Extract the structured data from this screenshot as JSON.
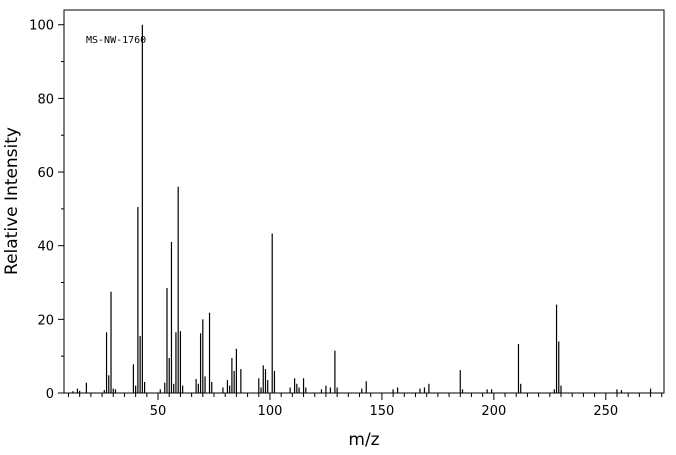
{
  "chart_data": {
    "type": "bar",
    "title": "",
    "annotation": "MS-NW-1760",
    "xlabel": "m/z",
    "ylabel": "Relative Intensity",
    "xlim": [
      8,
      276
    ],
    "ylim": [
      0,
      104
    ],
    "x_ticks": [
      50,
      100,
      150,
      200,
      250
    ],
    "y_ticks": [
      0,
      20,
      40,
      60,
      80,
      100
    ],
    "grid": false,
    "peaks": [
      {
        "mz": 12,
        "intensity": 0.5
      },
      {
        "mz": 14,
        "intensity": 1.2
      },
      {
        "mz": 15,
        "intensity": 0.6
      },
      {
        "mz": 18,
        "intensity": 2.8
      },
      {
        "mz": 26,
        "intensity": 0.8
      },
      {
        "mz": 27,
        "intensity": 16.5
      },
      {
        "mz": 28,
        "intensity": 4.8
      },
      {
        "mz": 29,
        "intensity": 27.5
      },
      {
        "mz": 30,
        "intensity": 1.2
      },
      {
        "mz": 31,
        "intensity": 1.0
      },
      {
        "mz": 39,
        "intensity": 7.8
      },
      {
        "mz": 40,
        "intensity": 2.0
      },
      {
        "mz": 41,
        "intensity": 50.5
      },
      {
        "mz": 42,
        "intensity": 15.5
      },
      {
        "mz": 43,
        "intensity": 100
      },
      {
        "mz": 44,
        "intensity": 3.0
      },
      {
        "mz": 51,
        "intensity": 1.0
      },
      {
        "mz": 53,
        "intensity": 2.8
      },
      {
        "mz": 54,
        "intensity": 28.5
      },
      {
        "mz": 55,
        "intensity": 9.5
      },
      {
        "mz": 56,
        "intensity": 41.0
      },
      {
        "mz": 57,
        "intensity": 2.5
      },
      {
        "mz": 58,
        "intensity": 16.5
      },
      {
        "mz": 59,
        "intensity": 56.0
      },
      {
        "mz": 60,
        "intensity": 16.8
      },
      {
        "mz": 61,
        "intensity": 2.0
      },
      {
        "mz": 67,
        "intensity": 3.8
      },
      {
        "mz": 68,
        "intensity": 2.5
      },
      {
        "mz": 69,
        "intensity": 16.2
      },
      {
        "mz": 70,
        "intensity": 20.0
      },
      {
        "mz": 71,
        "intensity": 4.5
      },
      {
        "mz": 73,
        "intensity": 21.8
      },
      {
        "mz": 74,
        "intensity": 3.0
      },
      {
        "mz": 79,
        "intensity": 1.5
      },
      {
        "mz": 81,
        "intensity": 3.5
      },
      {
        "mz": 82,
        "intensity": 2.0
      },
      {
        "mz": 83,
        "intensity": 9.5
      },
      {
        "mz": 84,
        "intensity": 6.0
      },
      {
        "mz": 85,
        "intensity": 12.0
      },
      {
        "mz": 87,
        "intensity": 6.5
      },
      {
        "mz": 95,
        "intensity": 4.0
      },
      {
        "mz": 96,
        "intensity": 1.5
      },
      {
        "mz": 97,
        "intensity": 7.5
      },
      {
        "mz": 98,
        "intensity": 6.5
      },
      {
        "mz": 99,
        "intensity": 3.5
      },
      {
        "mz": 101,
        "intensity": 43.3
      },
      {
        "mz": 102,
        "intensity": 6.0
      },
      {
        "mz": 109,
        "intensity": 1.5
      },
      {
        "mz": 111,
        "intensity": 4.0
      },
      {
        "mz": 112,
        "intensity": 2.5
      },
      {
        "mz": 113,
        "intensity": 1.5
      },
      {
        "mz": 115,
        "intensity": 4.0
      },
      {
        "mz": 116,
        "intensity": 1.5
      },
      {
        "mz": 123,
        "intensity": 1.0
      },
      {
        "mz": 125,
        "intensity": 2.0
      },
      {
        "mz": 127,
        "intensity": 1.5
      },
      {
        "mz": 129,
        "intensity": 11.5
      },
      {
        "mz": 130,
        "intensity": 1.5
      },
      {
        "mz": 141,
        "intensity": 1.2
      },
      {
        "mz": 143,
        "intensity": 3.2
      },
      {
        "mz": 155,
        "intensity": 1.0
      },
      {
        "mz": 157,
        "intensity": 1.5
      },
      {
        "mz": 167,
        "intensity": 1.2
      },
      {
        "mz": 169,
        "intensity": 1.5
      },
      {
        "mz": 171,
        "intensity": 2.5
      },
      {
        "mz": 185,
        "intensity": 6.2
      },
      {
        "mz": 186,
        "intensity": 1.0
      },
      {
        "mz": 197,
        "intensity": 1.0
      },
      {
        "mz": 199,
        "intensity": 1.0
      },
      {
        "mz": 211,
        "intensity": 13.3
      },
      {
        "mz": 212,
        "intensity": 2.5
      },
      {
        "mz": 227,
        "intensity": 1.0
      },
      {
        "mz": 228,
        "intensity": 24.0
      },
      {
        "mz": 229,
        "intensity": 14.0
      },
      {
        "mz": 230,
        "intensity": 2.0
      },
      {
        "mz": 255,
        "intensity": 1.0
      },
      {
        "mz": 257,
        "intensity": 0.8
      },
      {
        "mz": 270,
        "intensity": 1.2
      }
    ]
  }
}
